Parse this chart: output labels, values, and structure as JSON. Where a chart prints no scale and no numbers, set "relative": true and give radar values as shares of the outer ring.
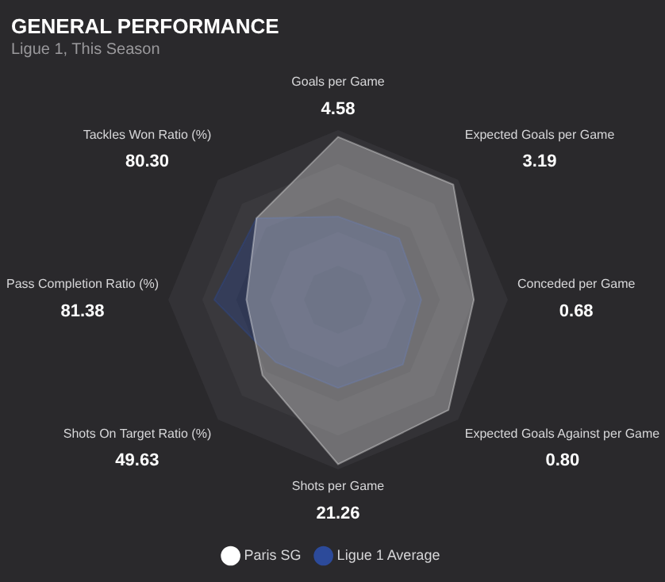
{
  "chart_data": {
    "type": "radar",
    "title": "GENERAL PERFORMANCE",
    "subtitle": "Ligue 1, This Season",
    "categories": [
      "Goals per Game",
      "Expected Goals per Game",
      "Conceded per Game",
      "Expected Goals Against per Game",
      "Shots per Game",
      "Shots On Target Ratio (%)",
      "Pass Completion Ratio (%)",
      "Tackles Won Ratio (%)"
    ],
    "annotations": [
      "4.58",
      "3.19",
      "0.68",
      "0.80",
      "21.26",
      "49.63",
      "81.38",
      "80.30"
    ],
    "relative": true,
    "grid": true,
    "legend": "bottom",
    "marker": "none",
    "series": [
      {
        "name": "Paris SG",
        "color": "#ffffff",
        "values": [
          0.96,
          0.96,
          0.8,
          0.92,
          0.97,
          0.63,
          0.54,
          0.68
        ]
      },
      {
        "name": "Ligue 1 Average",
        "color": "#2c4a9a",
        "values": [
          0.49,
          0.51,
          0.49,
          0.54,
          0.52,
          0.52,
          0.73,
          0.68
        ]
      }
    ]
  }
}
